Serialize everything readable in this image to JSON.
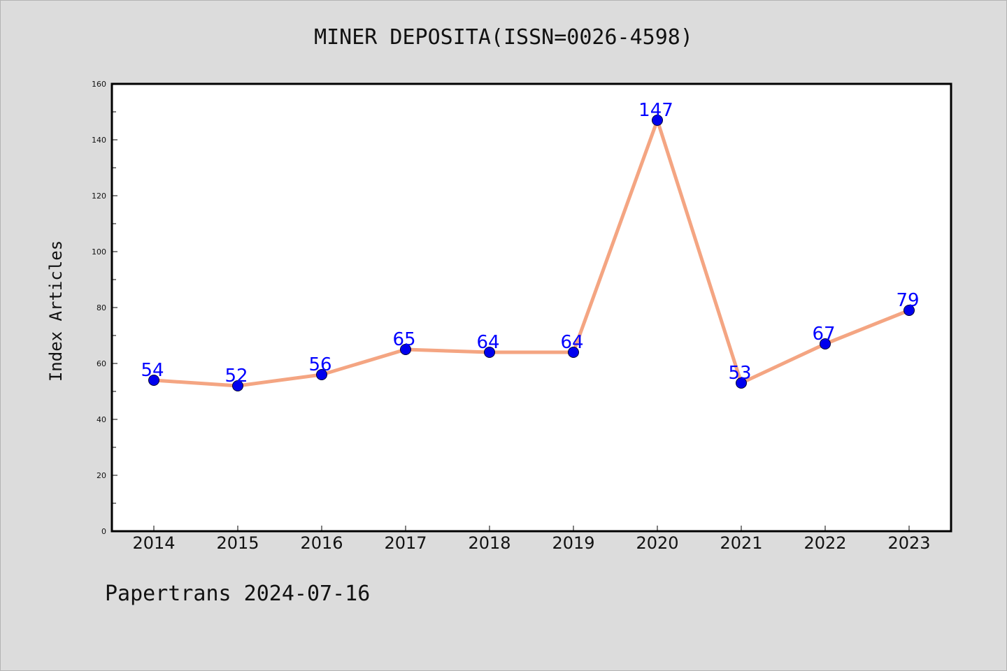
{
  "chart_data": {
    "type": "line",
    "title": "MINER DEPOSITA(ISSN=0026-4598)",
    "xlabel": "",
    "ylabel": "Index Articles",
    "categories": [
      "2014",
      "2015",
      "2016",
      "2017",
      "2018",
      "2019",
      "2020",
      "2021",
      "2022",
      "2023"
    ],
    "series": [
      {
        "values": [
          54,
          52,
          56,
          65,
          64,
          64,
          147,
          53,
          67,
          79
        ]
      }
    ],
    "data_labels": [
      "54",
      "52",
      "56",
      "65",
      "64",
      "64",
      "147",
      "53",
      "67",
      "79"
    ],
    "ylim": [
      0,
      160
    ],
    "yticks": [
      0,
      20,
      40,
      60,
      80,
      100,
      120,
      140,
      160
    ],
    "yticks_labels": [
      "0",
      "20",
      "40",
      "60",
      "80",
      "100",
      "120",
      "140",
      "160"
    ],
    "grid": false,
    "legend": "none",
    "colors": {
      "line": "#f4a582",
      "marker": "#0000ee",
      "label": "#0000ff",
      "background": "#dcdcdc",
      "plot_background": "#ffffff"
    }
  },
  "footer": {
    "note": "Papertrans 2024-07-16"
  }
}
